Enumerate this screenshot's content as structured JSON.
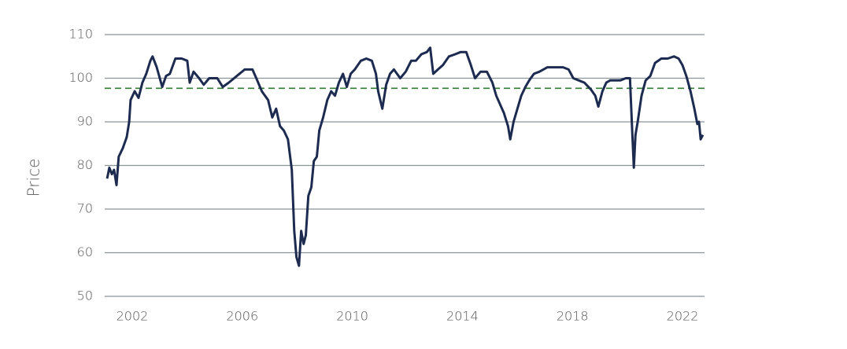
{
  "chart_data": {
    "type": "line",
    "y_label": "Price",
    "x": [
      2001.09,
      2001.17,
      2001.26,
      2001.34,
      2001.43,
      2001.51,
      2001.66,
      2001.8,
      2001.89,
      2001.94,
      2002.09,
      2002.23,
      2002.37,
      2002.51,
      2002.66,
      2002.74,
      2002.89,
      2003.09,
      2003.23,
      2003.37,
      2003.57,
      2003.8,
      2004.0,
      2004.09,
      2004.23,
      2004.43,
      2004.6,
      2004.8,
      2005.09,
      2005.29,
      2005.51,
      2005.8,
      2006.09,
      2006.37,
      2006.51,
      2006.71,
      2006.94,
      2007.09,
      2007.23,
      2007.37,
      2007.51,
      2007.66,
      2007.8,
      2007.89,
      2007.97,
      2008.06,
      2008.14,
      2008.23,
      2008.31,
      2008.4,
      2008.51,
      2008.6,
      2008.71,
      2008.8,
      2008.94,
      2009.09,
      2009.23,
      2009.37,
      2009.51,
      2009.66,
      2009.8,
      2009.94,
      2010.09,
      2010.31,
      2010.51,
      2010.71,
      2010.86,
      2010.94,
      2011.09,
      2011.23,
      2011.37,
      2011.51,
      2011.74,
      2011.94,
      2012.14,
      2012.31,
      2012.51,
      2012.71,
      2012.83,
      2012.94,
      2013.11,
      2013.29,
      2013.51,
      2013.74,
      2013.94,
      2014.14,
      2014.31,
      2014.46,
      2014.66,
      2014.89,
      2015.09,
      2015.23,
      2015.37,
      2015.51,
      2015.66,
      2015.74,
      2015.86,
      2016.0,
      2016.14,
      2016.29,
      2016.43,
      2016.6,
      2016.8,
      2017.09,
      2017.37,
      2017.66,
      2017.86,
      2018.03,
      2018.23,
      2018.43,
      2018.66,
      2018.83,
      2018.94,
      2019.09,
      2019.23,
      2019.37,
      2019.51,
      2019.74,
      2019.94,
      2020.09,
      2020.17,
      2020.23,
      2020.29,
      2020.37,
      2020.51,
      2020.66,
      2020.83,
      2021.0,
      2021.23,
      2021.46,
      2021.69,
      2021.86,
      2022.0,
      2022.14,
      2022.29,
      2022.43,
      2022.54,
      2022.6,
      2022.66,
      2022.74
    ],
    "series": [
      {
        "color": "#1c2b4f",
        "values": [
          77,
          79.5,
          78,
          79,
          75.5,
          82,
          84,
          86.5,
          90,
          95,
          97,
          95.5,
          99,
          101,
          104,
          105,
          102.5,
          98,
          100.5,
          101,
          104.5,
          104.5,
          104,
          99,
          101.5,
          100,
          98.5,
          100,
          100,
          98,
          99,
          100.5,
          102,
          102,
          100,
          97,
          95,
          91,
          93,
          89,
          88,
          86,
          79,
          65,
          59,
          57,
          65,
          62,
          64,
          73,
          75,
          81,
          82,
          88,
          91,
          95,
          97,
          96,
          99,
          101,
          98,
          101,
          102,
          104,
          104.5,
          104,
          101,
          97,
          93,
          98.5,
          101,
          102,
          100,
          101.5,
          104,
          104,
          105.5,
          106,
          107,
          101,
          102,
          103,
          105,
          105.5,
          106,
          106,
          103,
          100,
          101.5,
          101.5,
          99,
          96,
          94,
          92,
          89,
          86,
          90,
          93,
          96,
          98,
          99.5,
          101,
          101.5,
          102.5,
          102.5,
          102.5,
          102,
          100,
          99.5,
          99,
          97.5,
          96,
          93.5,
          97,
          99,
          99.5,
          99.5,
          99.5,
          100,
          100,
          88,
          79.5,
          87,
          90,
          96,
          99.5,
          100.5,
          103.5,
          104.5,
          104.5,
          105,
          104.5,
          103,
          100.5,
          97,
          93,
          89.5,
          90,
          86,
          87
        ]
      }
    ],
    "reference_line": {
      "value": 97.7,
      "color": "#2e7d32"
    },
    "xlim": [
      2001.0,
      2022.8
    ],
    "xticks": [
      2002,
      2006,
      2010,
      2014,
      2018,
      2022
    ],
    "ylim": [
      50,
      110
    ],
    "yticks": [
      50,
      60,
      70,
      80,
      90,
      100,
      110
    ],
    "grid": true
  }
}
